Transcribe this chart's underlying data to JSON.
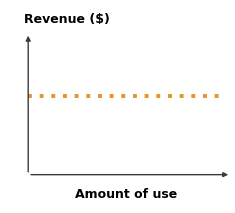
{
  "title": "",
  "xlabel": "Amount of use",
  "ylabel": "Revenue ($)",
  "line_y": 0.58,
  "line_xmin": 0.0,
  "line_xmax": 1.0,
  "line_color": "#E8922A",
  "line_width": 2.8,
  "xlim": [
    0,
    1
  ],
  "ylim": [
    0,
    1
  ],
  "background_color": "#ffffff",
  "xlabel_fontsize": 9,
  "ylabel_fontsize": 9,
  "xlabel_fontweight": "bold",
  "ylabel_fontweight": "bold",
  "arrow_color": "#3a3a3a",
  "arrow_lw": 1.0,
  "arrow_mutation_scale": 7
}
